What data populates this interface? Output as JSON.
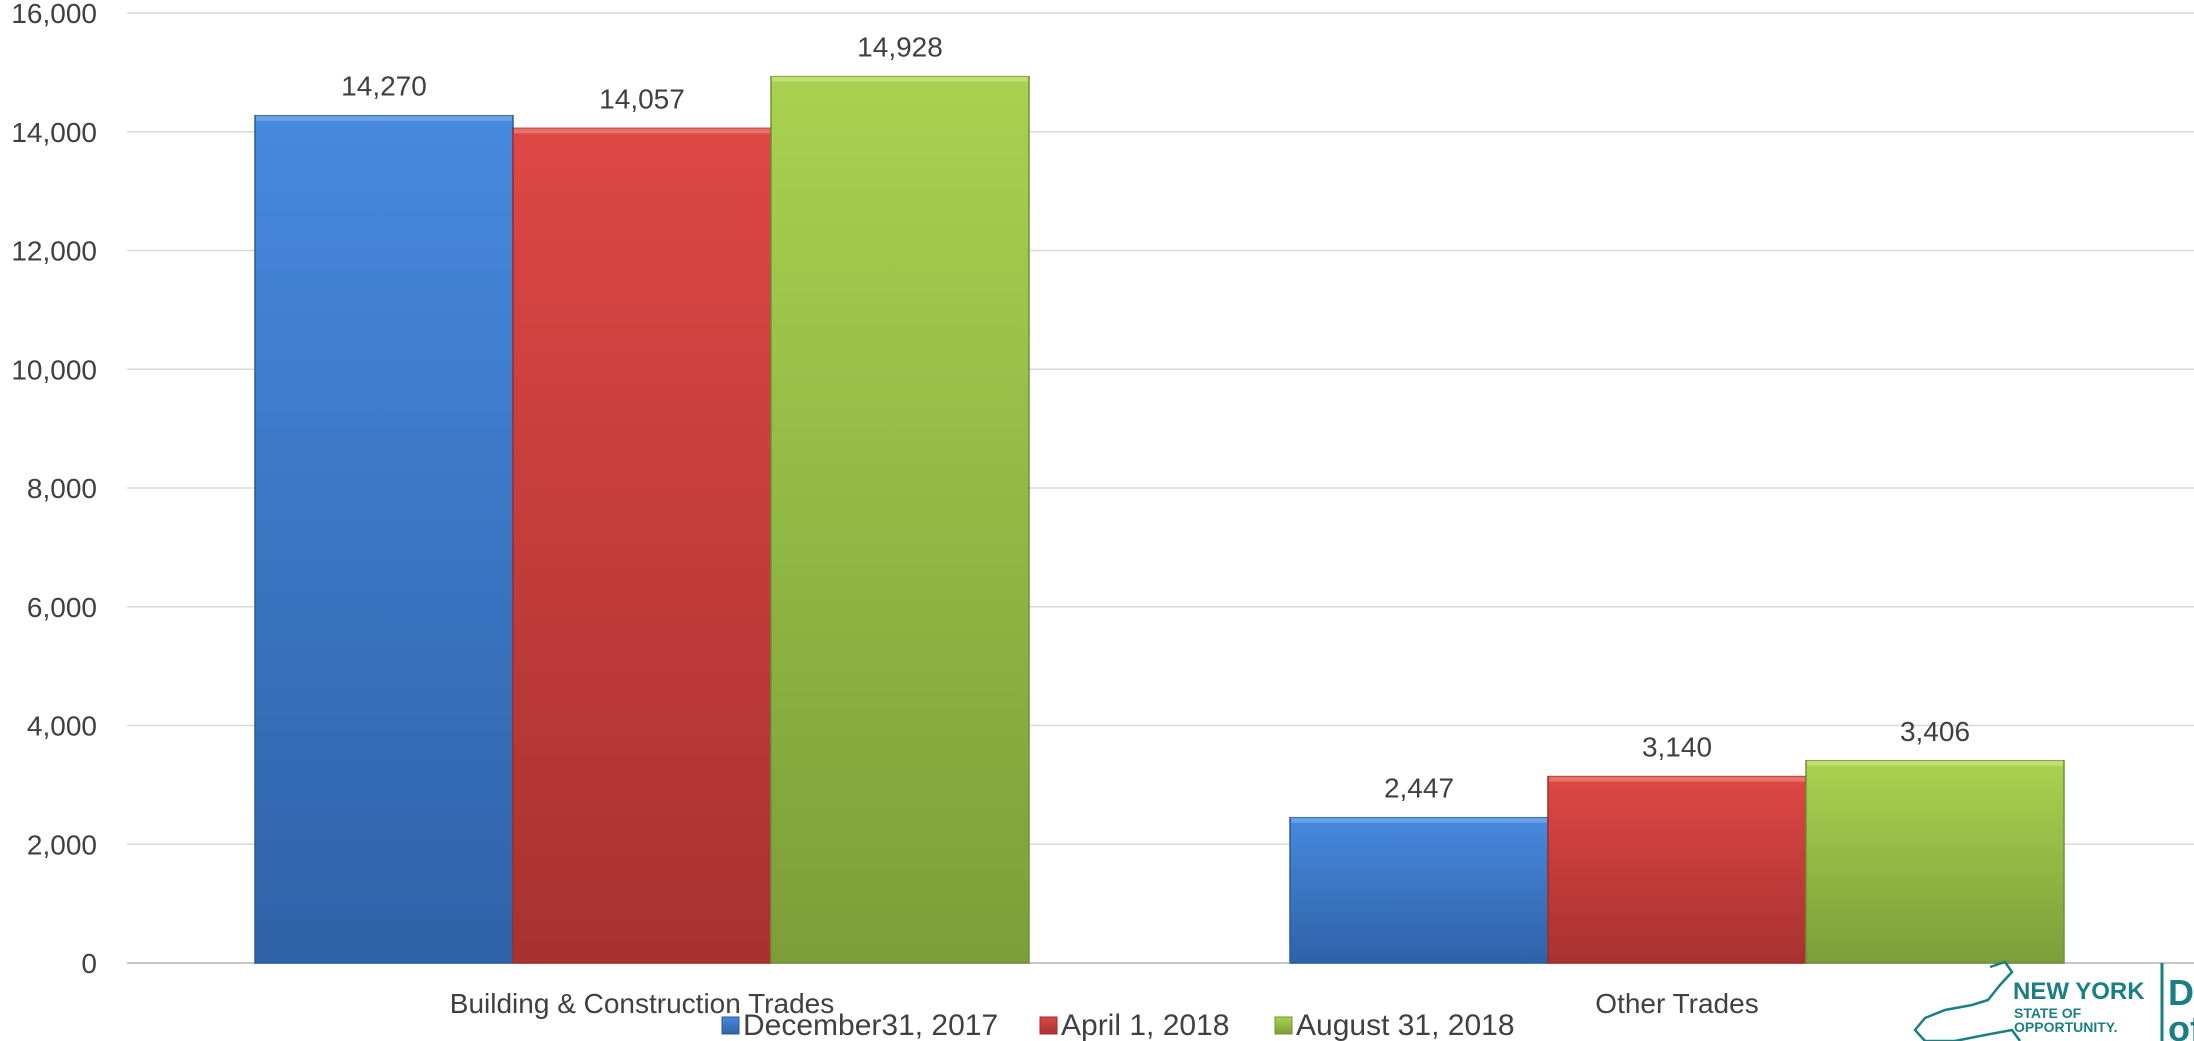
{
  "chart_data": {
    "type": "bar",
    "categories": [
      "Building & Construction Trades",
      "Other Trades"
    ],
    "series": [
      {
        "name": "December31, 2017",
        "values": [
          14270,
          2447
        ],
        "color": "#3f7fd0"
      },
      {
        "name": "April 1, 2018",
        "values": [
          14057,
          3140
        ],
        "color": "#d43f3c"
      },
      {
        "name": "August 31, 2018",
        "values": [
          14928,
          3406
        ],
        "color": "#96c144"
      }
    ],
    "data_labels": [
      [
        "14,270",
        "2,447"
      ],
      [
        "14,057",
        "3,140"
      ],
      [
        "14,928",
        "3,406"
      ]
    ],
    "yticks": [
      "0",
      "2,000",
      "4,000",
      "6,000",
      "8,000",
      "10,000",
      "12,000",
      "14,000",
      "16,000"
    ],
    "ylim": [
      0,
      16000
    ],
    "title": "",
    "xlabel": "",
    "ylabel": "",
    "grid": true,
    "legend_position": "bottom"
  },
  "logo": {
    "line1": "NEW YORK",
    "line2": "STATE OF",
    "line3": "OPPORTUNITY.",
    "partial_text_1": "De",
    "partial_text_2": "of",
    "color": "#1a7f83"
  }
}
